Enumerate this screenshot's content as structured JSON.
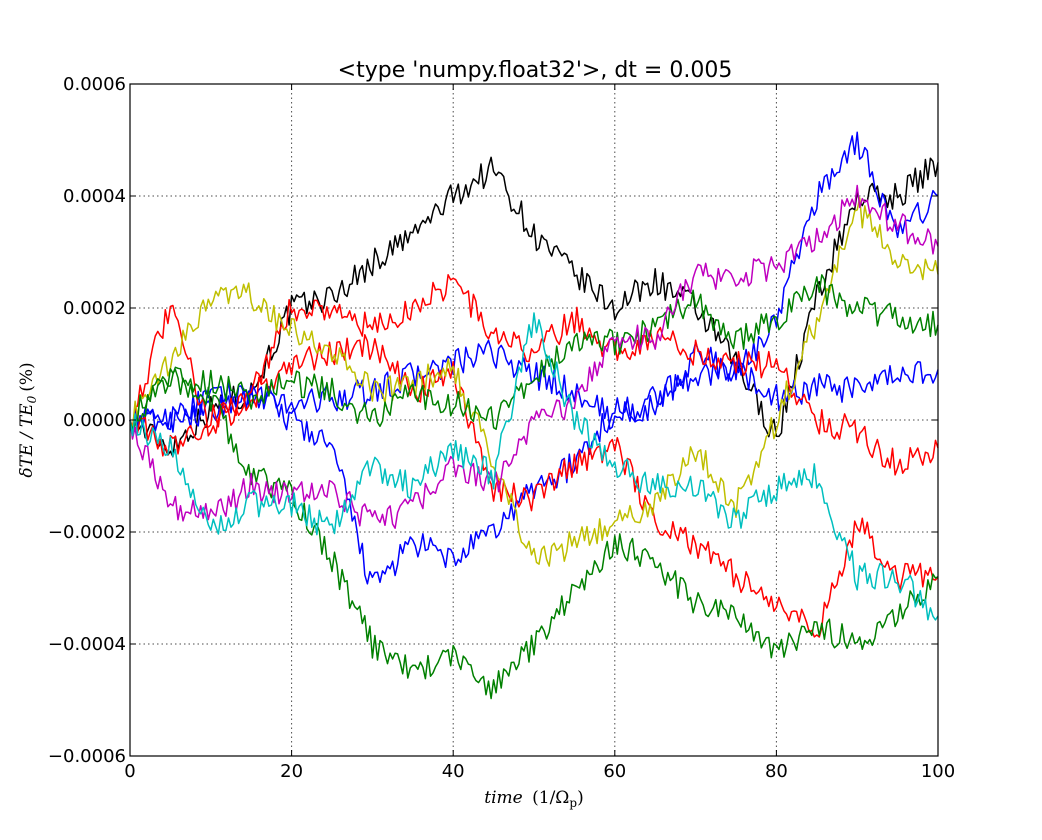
{
  "chart_data": {
    "type": "line",
    "title": "<type 'numpy.float32'>, dt = 0.005",
    "xlabel": "time (1/Ω_p)",
    "ylabel": "δTE / TE_0 (%)",
    "xlim": [
      0,
      100
    ],
    "ylim": [
      -0.0006,
      0.0006
    ],
    "grid": true,
    "x_ticks": [
      0,
      20,
      40,
      60,
      80,
      100
    ],
    "x_tick_labels": [
      "0",
      "20",
      "40",
      "60",
      "80",
      "100"
    ],
    "y_ticks": [
      -0.0006,
      -0.0004,
      -0.0002,
      0.0,
      0.0002,
      0.0004,
      0.0006
    ],
    "y_tick_labels": [
      "−0.0006",
      "−0.0004",
      "−0.0002",
      "0.0000",
      "0.0002",
      "0.0004",
      "0.0006"
    ],
    "x": [
      0,
      5,
      10,
      15,
      20,
      25,
      30,
      35,
      40,
      45,
      50,
      55,
      60,
      65,
      70,
      75,
      80,
      85,
      90,
      95,
      100
    ],
    "series": [
      {
        "color": "#000000",
        "values": [
          0.0,
          -5e-05,
          2e-05,
          5e-05,
          0.0002,
          0.00022,
          0.00028,
          0.00033,
          0.0004,
          0.00045,
          0.00033,
          0.00026,
          0.0002,
          0.00025,
          0.0002,
          0.0001,
          -3e-05,
          0.00022,
          0.0004,
          0.0004,
          0.00046
        ]
      },
      {
        "color": "#0000ff",
        "values": [
          0.0,
          0.0,
          4e-05,
          5e-05,
          0.0,
          -5e-05,
          -0.0003,
          -0.00022,
          -0.00025,
          -0.0002,
          -0.00012,
          -8e-05,
          2e-05,
          2e-05,
          0.00012,
          8e-05,
          0.00018,
          0.0004,
          0.0005,
          0.00033,
          0.0004
        ]
      },
      {
        "color": "#0000ff",
        "values": [
          0.0,
          0.0,
          2e-05,
          4e-05,
          3e-05,
          4e-05,
          5e-05,
          8e-05,
          0.0001,
          0.00012,
          8e-05,
          5e-05,
          0.0,
          4e-05,
          8e-05,
          9e-05,
          4e-05,
          6e-05,
          5e-05,
          8e-05,
          9e-05
        ]
      },
      {
        "color": "#ff0000",
        "values": [
          0.0,
          0.0002,
          -2e-05,
          5e-05,
          0.0002,
          0.0002,
          0.00016,
          0.0002,
          0.00025,
          0.00015,
          0.00012,
          0.00018,
          0.00012,
          0.00015,
          0.00012,
          0.0001,
          0.0001,
          0.0,
          -2e-05,
          -8e-05,
          -5e-05
        ]
      },
      {
        "color": "#ff0000",
        "values": [
          0.0,
          -5e-05,
          0.0,
          4e-05,
          0.0001,
          0.00012,
          0.00013,
          5e-05,
          8e-05,
          -0.00012,
          -0.00014,
          -8e-05,
          -4e-05,
          -0.00018,
          -0.00022,
          -0.00028,
          -0.00033,
          -0.00038,
          -0.00018,
          -0.00028,
          -0.00028
        ]
      },
      {
        "color": "#bfbf00",
        "values": [
          0.0,
          0.0001,
          0.00022,
          0.00022,
          0.00016,
          0.00012,
          5e-05,
          6e-05,
          0.0001,
          -8e-05,
          -0.00025,
          -0.00022,
          -0.00018,
          -0.00015,
          -5e-05,
          -0.00015,
          0.0,
          0.00018,
          0.00038,
          0.00028,
          0.00026
        ]
      },
      {
        "color": "#008000",
        "values": [
          0.0,
          8e-05,
          4e-05,
          -0.0001,
          -0.00013,
          -0.00025,
          -0.0004,
          -0.00045,
          -0.00042,
          -0.00048,
          -0.0004,
          -0.0003,
          -0.00022,
          -0.00025,
          -0.00033,
          -0.00035,
          -0.00042,
          -0.00037,
          -0.0004,
          -0.00035,
          -0.00028
        ]
      },
      {
        "color": "#008000",
        "values": [
          0.0,
          8e-05,
          7e-05,
          4e-05,
          7e-05,
          5e-05,
          0.0,
          5e-05,
          3e-05,
          0.0,
          8e-05,
          0.00015,
          0.00014,
          0.00016,
          0.00022,
          0.00014,
          0.00018,
          0.00024,
          0.0002,
          0.00018,
          0.00017
        ]
      },
      {
        "color": "#bf00bf",
        "values": [
          0.0,
          -0.00015,
          -0.00017,
          -0.00012,
          -0.00013,
          -0.00013,
          -0.00018,
          -0.00016,
          -8e-05,
          -0.00012,
          0.0,
          3e-05,
          0.00015,
          0.00015,
          0.00026,
          0.00025,
          0.00028,
          0.00032,
          0.0004,
          0.00035,
          0.00031
        ]
      },
      {
        "color": "#00bfbf",
        "values": [
          0.0,
          -5e-05,
          -0.0002,
          -0.00015,
          -0.00015,
          -0.0002,
          -8e-05,
          -0.00012,
          -5e-05,
          -0.0001,
          0.00018,
          0.0,
          -8e-05,
          -0.00012,
          -0.00012,
          -0.00018,
          -0.00012,
          -0.0001,
          -0.00028,
          -0.00028,
          -0.00035
        ]
      }
    ]
  }
}
